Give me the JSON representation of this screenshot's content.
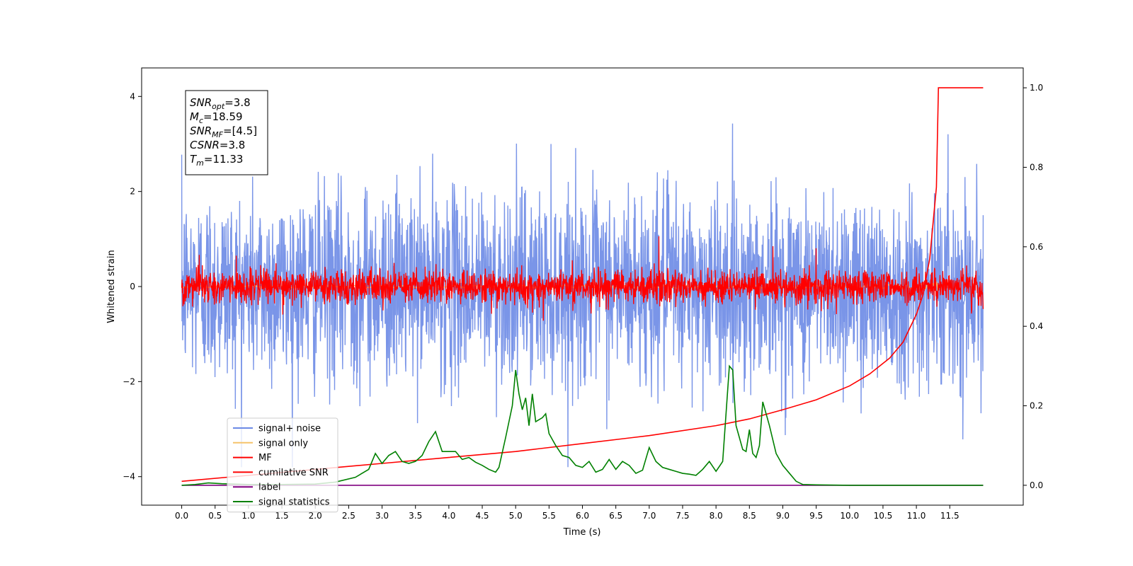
{
  "chart_data": {
    "type": "line",
    "xlabel": "Time (s)",
    "ylabel": "Whitened strain",
    "xlim": [
      -0.6,
      12.6
    ],
    "ylim": [
      -4.6,
      4.6
    ],
    "y2lim": [
      -0.05,
      1.05
    ],
    "x_ticks": [
      "0.0",
      "0.5",
      "1.0",
      "1.5",
      "2.0",
      "2.5",
      "3.0",
      "3.5",
      "4.0",
      "4.5",
      "5.0",
      "5.5",
      "6.0",
      "6.5",
      "7.0",
      "7.5",
      "8.0",
      "8.5",
      "9.0",
      "9.5",
      "10.0",
      "10.5",
      "11.0",
      "11.5"
    ],
    "y_ticks": [
      "4",
      "2",
      "0",
      "−2",
      "−4"
    ],
    "y2_ticks": [
      "1.0",
      "0.8",
      "0.6",
      "0.4",
      "0.2",
      "0.0"
    ],
    "legend_placement": "lower-left",
    "annotation": {
      "snr_opt": {
        "sym": "SNR",
        "sub": "opt",
        "val": "=3.8"
      },
      "mc": {
        "sym": "M",
        "sub": "c",
        "val": "=18.59"
      },
      "snr_mf": {
        "sym": "SNR",
        "sub": "MF",
        "val": "=[4.5]"
      },
      "csnr": {
        "sym": "CSNR",
        "sub": "",
        "val": "=3.8"
      },
      "tm": {
        "sym": "T",
        "sub": "m",
        "val": "=11.33"
      }
    },
    "series": [
      {
        "name": "signal+ noise",
        "color": "#6b8ae6",
        "axis": "left",
        "kind": "noise",
        "t_start": 0.0,
        "t_end": 12.0,
        "amplitude_std": 1.0,
        "envelope_range": [
          -3.8,
          4.2
        ]
      },
      {
        "name": "signal only",
        "color": "#f5c36b",
        "axis": "left",
        "kind": "chirp",
        "t_start": 0.0,
        "t_end": 11.33,
        "peak_amplitude": 0.7
      },
      {
        "name": "MF",
        "color": "#ff0000",
        "axis": "left",
        "kind": "noise",
        "t_start": 0.0,
        "t_end": 12.0,
        "amplitude_std": 0.17
      },
      {
        "name": "cumilative SNR",
        "color": "#ff0000",
        "axis": "right",
        "x": [
          0.0,
          1.0,
          2.0,
          3.0,
          4.0,
          5.0,
          6.0,
          7.0,
          8.0,
          8.5,
          9.0,
          9.5,
          10.0,
          10.3,
          10.6,
          10.8,
          11.0,
          11.1,
          11.2,
          11.3,
          11.33,
          12.0
        ],
        "y": [
          0.01,
          0.025,
          0.04,
          0.055,
          0.07,
          0.085,
          0.105,
          0.125,
          0.15,
          0.167,
          0.19,
          0.215,
          0.25,
          0.28,
          0.32,
          0.36,
          0.43,
          0.48,
          0.57,
          0.75,
          1.0,
          1.0
        ]
      },
      {
        "name": "label",
        "color": "#800080",
        "axis": "right",
        "x": [
          0.0,
          12.0
        ],
        "y": [
          0.0,
          0.0
        ]
      },
      {
        "name": "signal statistics",
        "color": "#008000",
        "axis": "right",
        "x": [
          0.0,
          0.2,
          0.4,
          0.6,
          0.8,
          1.0,
          1.5,
          2.0,
          2.3,
          2.6,
          2.8,
          2.9,
          3.0,
          3.1,
          3.2,
          3.3,
          3.4,
          3.5,
          3.6,
          3.7,
          3.8,
          3.9,
          4.0,
          4.1,
          4.2,
          4.3,
          4.4,
          4.5,
          4.6,
          4.7,
          4.75,
          4.85,
          4.95,
          5.0,
          5.05,
          5.1,
          5.15,
          5.2,
          5.25,
          5.3,
          5.35,
          5.4,
          5.45,
          5.5,
          5.6,
          5.7,
          5.8,
          5.9,
          6.0,
          6.1,
          6.2,
          6.3,
          6.4,
          6.5,
          6.6,
          6.7,
          6.8,
          6.9,
          7.0,
          7.1,
          7.2,
          7.3,
          7.4,
          7.5,
          7.6,
          7.7,
          7.8,
          7.9,
          8.0,
          8.1,
          8.2,
          8.25,
          8.3,
          8.4,
          8.45,
          8.5,
          8.55,
          8.6,
          8.65,
          8.7,
          8.8,
          8.9,
          9.0,
          9.1,
          9.2,
          9.3,
          9.5,
          10.0,
          11.0,
          12.0
        ],
        "y": [
          0.0,
          0.002,
          0.006,
          0.004,
          0.003,
          0.002,
          0.002,
          0.003,
          0.008,
          0.02,
          0.04,
          0.08,
          0.055,
          0.075,
          0.085,
          0.06,
          0.055,
          0.06,
          0.075,
          0.11,
          0.135,
          0.085,
          0.085,
          0.085,
          0.065,
          0.07,
          0.058,
          0.05,
          0.04,
          0.033,
          0.045,
          0.12,
          0.2,
          0.29,
          0.23,
          0.19,
          0.22,
          0.15,
          0.23,
          0.16,
          0.165,
          0.17,
          0.18,
          0.13,
          0.1,
          0.075,
          0.07,
          0.05,
          0.045,
          0.06,
          0.033,
          0.04,
          0.065,
          0.04,
          0.06,
          0.05,
          0.03,
          0.038,
          0.095,
          0.06,
          0.045,
          0.04,
          0.035,
          0.03,
          0.028,
          0.025,
          0.04,
          0.06,
          0.035,
          0.06,
          0.3,
          0.29,
          0.15,
          0.09,
          0.085,
          0.14,
          0.08,
          0.07,
          0.1,
          0.21,
          0.15,
          0.08,
          0.05,
          0.03,
          0.01,
          0.002,
          0.001,
          0.0,
          0.0,
          0.0
        ]
      }
    ]
  }
}
